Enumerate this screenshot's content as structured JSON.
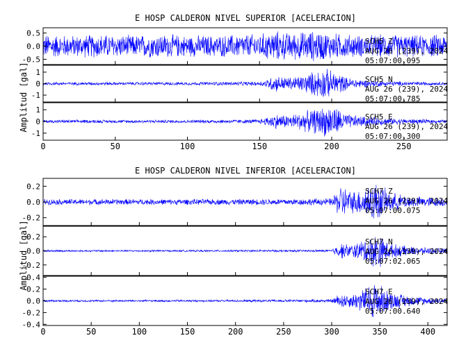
{
  "chart_data": [
    {
      "type": "line",
      "title": "E HOSP CALDERON NIVEL SUPERIOR [ACELERACION]",
      "ylabel": "Amplitud [gal]",
      "xlim": [
        0,
        280
      ],
      "x_ticks": [
        0,
        50,
        100,
        150,
        200,
        250
      ],
      "line_color": "#0000ff",
      "panels": [
        {
          "name": "SCH5 Z",
          "station_label": "SCH5 Z",
          "date_label": "AUG 26 (239), 2024",
          "time_label": "05:07:00.095",
          "ylim": [
            -0.7,
            0.7
          ],
          "y_ticks": [
            0.5,
            0.0,
            -0.5
          ],
          "y_tick_labels": [
            "0.5",
            "0.0",
            "-0.5"
          ],
          "envelope": {
            "x": [
              0,
              20,
              40,
              60,
              80,
              100,
              120,
              140,
              150,
              160,
              170,
              180,
              190,
              200,
              210,
              220,
              240,
              260,
              280
            ],
            "amplitude": [
              0.5,
              0.45,
              0.5,
              0.45,
              0.5,
              0.45,
              0.45,
              0.5,
              0.5,
              0.65,
              0.55,
              0.6,
              0.65,
              0.55,
              0.5,
              0.45,
              0.5,
              0.45,
              0.5
            ]
          }
        },
        {
          "name": "SCH5 N",
          "station_label": "SCH5 N",
          "date_label": "AUG 26 (239), 2024",
          "time_label": "05:07:00.785",
          "ylim": [
            -1.6,
            1.6
          ],
          "y_ticks": [
            1,
            0,
            -1
          ],
          "y_tick_labels": [
            "1",
            "0",
            "-1"
          ],
          "envelope": {
            "x": [
              0,
              100,
              150,
              155,
              160,
              170,
              180,
              190,
              195,
              200,
              205,
              210,
              220,
              230,
              250,
              280
            ],
            "amplitude": [
              0.15,
              0.15,
              0.2,
              0.4,
              0.8,
              0.6,
              0.8,
              1.3,
              1.5,
              1.2,
              1.0,
              0.6,
              0.4,
              0.3,
              0.2,
              0.15
            ]
          }
        },
        {
          "name": "SCH5 E",
          "station_label": "SCH5 E",
          "date_label": "AUG 26 (239), 2024",
          "time_label": "05:07:00.300",
          "ylim": [
            -1.6,
            1.6
          ],
          "y_ticks": [
            1,
            0,
            -1
          ],
          "y_tick_labels": [
            "1",
            "0",
            "-1"
          ],
          "envelope": {
            "x": [
              0,
              100,
              150,
              155,
              160,
              170,
              180,
              190,
              195,
              200,
              205,
              210,
              220,
              230,
              250,
              280
            ],
            "amplitude": [
              0.15,
              0.15,
              0.2,
              0.4,
              0.7,
              0.6,
              0.9,
              1.2,
              1.4,
              1.5,
              1.2,
              0.7,
              0.5,
              0.4,
              0.25,
              0.15
            ]
          }
        }
      ]
    },
    {
      "type": "line",
      "title": "E HOSP CALDERON NIVEL INFERIOR [ACELERACION]",
      "ylabel": "Amplitud [gal]",
      "xlim": [
        0,
        420
      ],
      "x_ticks": [
        0,
        50,
        100,
        150,
        200,
        250,
        300,
        350,
        400
      ],
      "line_color": "#0000ff",
      "panels": [
        {
          "name": "SCH7 Z",
          "station_label": "SCH7 Z",
          "date_label": "AUG 26 (239), 2024",
          "time_label": "05:07:00.075",
          "ylim": [
            -0.3,
            0.3
          ],
          "y_ticks": [
            0.2,
            0.0,
            -0.2
          ],
          "y_tick_labels": [
            "0.2",
            "0.0",
            "-0.2"
          ],
          "envelope": {
            "x": [
              0,
              100,
              200,
              300,
              305,
              310,
              320,
              330,
              340,
              345,
              350,
              360,
              380,
              400,
              420
            ],
            "amplitude": [
              0.04,
              0.04,
              0.04,
              0.05,
              0.15,
              0.24,
              0.15,
              0.18,
              0.25,
              0.28,
              0.24,
              0.14,
              0.08,
              0.07,
              0.06
            ]
          }
        },
        {
          "name": "SCH7 N",
          "station_label": "SCH7 N",
          "date_label": "AUG 26 (239), 2024",
          "time_label": "05:07:02.065",
          "ylim": [
            -0.35,
            0.35
          ],
          "y_ticks": [
            0.2,
            0.0,
            -0.2
          ],
          "y_tick_labels": [
            "0.2",
            "0.0",
            "-0.2"
          ],
          "envelope": {
            "x": [
              0,
              100,
              200,
              300,
              305,
              310,
              320,
              330,
              340,
              345,
              350,
              360,
              380,
              400,
              420
            ],
            "amplitude": [
              0.015,
              0.015,
              0.015,
              0.02,
              0.08,
              0.12,
              0.1,
              0.15,
              0.22,
              0.28,
              0.25,
              0.12,
              0.07,
              0.05,
              0.04
            ]
          }
        },
        {
          "name": "SCH7 E",
          "station_label": "SCH7 E",
          "date_label": "AUG 26 (239), 2024",
          "time_label": "05:07:00.640",
          "ylim": [
            -0.42,
            0.42
          ],
          "y_ticks": [
            0.4,
            0.2,
            0.0,
            -0.2,
            -0.4
          ],
          "y_tick_labels": [
            "0.4",
            "0.2",
            "0.0",
            "-0.2",
            "-0.4"
          ],
          "envelope": {
            "x": [
              0,
              100,
              200,
              300,
              305,
              310,
              320,
              330,
              340,
              345,
              350,
              360,
              380,
              400,
              420
            ],
            "amplitude": [
              0.02,
              0.02,
              0.02,
              0.03,
              0.1,
              0.14,
              0.12,
              0.2,
              0.3,
              0.38,
              0.3,
              0.18,
              0.1,
              0.06,
              0.05
            ]
          }
        }
      ]
    }
  ]
}
